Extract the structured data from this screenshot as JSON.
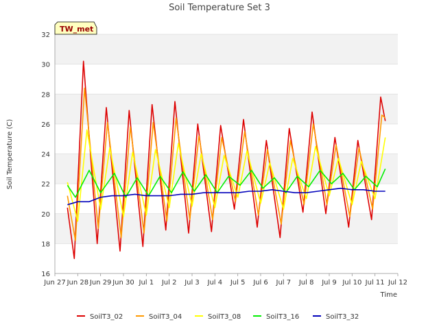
{
  "chart_data": {
    "type": "line",
    "title": "Soil Temperature Set 3",
    "xlabel": "Time",
    "ylabel": "Soil Temperature (C)",
    "site_label": "TW_met",
    "x_unit": "days",
    "xlim": [
      0,
      15
    ],
    "ylim": [
      16,
      32
    ],
    "yticks": [
      16,
      18,
      20,
      22,
      24,
      26,
      28,
      30,
      32
    ],
    "xticks": [
      {
        "x": 0,
        "label": "Jun 27"
      },
      {
        "x": 1,
        "label": "Jun 28"
      },
      {
        "x": 2,
        "label": "Jun 29"
      },
      {
        "x": 3,
        "label": "Jun 30"
      },
      {
        "x": 4,
        "label": "Jul 1"
      },
      {
        "x": 5,
        "label": "Jul 2"
      },
      {
        "x": 6,
        "label": "Jul 3"
      },
      {
        "x": 7,
        "label": "Jul 4"
      },
      {
        "x": 8,
        "label": "Jul 5"
      },
      {
        "x": 9,
        "label": "Jul 6"
      },
      {
        "x": 10,
        "label": "Jul 7"
      },
      {
        "x": 11,
        "label": "Jul 8"
      },
      {
        "x": 12,
        "label": "Jul 9"
      },
      {
        "x": 13,
        "label": "Jul 10"
      },
      {
        "x": 14,
        "label": "Jul 11"
      },
      {
        "x": 15,
        "label": "Jul 12"
      }
    ],
    "grid": true,
    "legend_position": "bottom",
    "series": [
      {
        "name": "SoilT3_02",
        "color": "#dd0000",
        "points": [
          [
            0.55,
            20.4
          ],
          [
            0.85,
            17.0
          ],
          [
            1.25,
            30.2
          ],
          [
            1.85,
            18.0
          ],
          [
            2.25,
            27.1
          ],
          [
            2.85,
            17.5
          ],
          [
            3.25,
            26.9
          ],
          [
            3.85,
            17.8
          ],
          [
            4.25,
            27.3
          ],
          [
            4.85,
            18.9
          ],
          [
            5.25,
            27.5
          ],
          [
            5.85,
            18.7
          ],
          [
            6.25,
            26.0
          ],
          [
            6.85,
            18.8
          ],
          [
            7.25,
            25.9
          ],
          [
            7.85,
            20.3
          ],
          [
            8.25,
            26.3
          ],
          [
            8.85,
            19.1
          ],
          [
            9.25,
            24.9
          ],
          [
            9.85,
            18.4
          ],
          [
            10.25,
            25.7
          ],
          [
            10.85,
            20.1
          ],
          [
            11.25,
            26.8
          ],
          [
            11.85,
            20.0
          ],
          [
            12.25,
            25.1
          ],
          [
            12.85,
            19.1
          ],
          [
            13.25,
            24.9
          ],
          [
            13.85,
            19.6
          ],
          [
            14.25,
            27.8
          ],
          [
            14.45,
            26.2
          ]
        ]
      },
      {
        "name": "SoilT3_04",
        "color": "#ff9900",
        "points": [
          [
            0.55,
            21.2
          ],
          [
            0.9,
            18.2
          ],
          [
            1.3,
            28.4
          ],
          [
            1.9,
            19.0
          ],
          [
            2.3,
            26.1
          ],
          [
            2.9,
            18.4
          ],
          [
            3.3,
            25.8
          ],
          [
            3.9,
            18.7
          ],
          [
            4.3,
            26.1
          ],
          [
            4.9,
            19.5
          ],
          [
            5.3,
            26.4
          ],
          [
            5.9,
            19.6
          ],
          [
            6.3,
            25.2
          ],
          [
            6.9,
            19.6
          ],
          [
            7.3,
            25.1
          ],
          [
            7.9,
            20.8
          ],
          [
            8.3,
            25.5
          ],
          [
            8.9,
            19.9
          ],
          [
            9.3,
            24.3
          ],
          [
            9.9,
            19.3
          ],
          [
            10.3,
            24.9
          ],
          [
            10.9,
            20.6
          ],
          [
            11.3,
            26.0
          ],
          [
            11.9,
            20.6
          ],
          [
            12.3,
            24.6
          ],
          [
            12.9,
            19.8
          ],
          [
            13.3,
            24.4
          ],
          [
            13.9,
            20.3
          ],
          [
            14.3,
            26.6
          ],
          [
            14.45,
            26.4
          ]
        ]
      },
      {
        "name": "SoilT3_08",
        "color": "#ffff00",
        "points": [
          [
            0.55,
            22.1
          ],
          [
            1.0,
            19.5
          ],
          [
            1.4,
            25.6
          ],
          [
            2.0,
            20.3
          ],
          [
            2.4,
            24.4
          ],
          [
            3.0,
            19.8
          ],
          [
            3.4,
            24.1
          ],
          [
            4.0,
            19.9
          ],
          [
            4.4,
            24.3
          ],
          [
            5.0,
            20.4
          ],
          [
            5.4,
            24.7
          ],
          [
            6.0,
            20.5
          ],
          [
            6.4,
            24.0
          ],
          [
            7.0,
            20.4
          ],
          [
            7.4,
            23.9
          ],
          [
            8.0,
            21.1
          ],
          [
            8.4,
            24.2
          ],
          [
            9.0,
            20.7
          ],
          [
            9.4,
            23.4
          ],
          [
            10.0,
            20.3
          ],
          [
            10.4,
            23.7
          ],
          [
            11.0,
            21.0
          ],
          [
            11.4,
            24.5
          ],
          [
            12.0,
            21.2
          ],
          [
            12.4,
            23.7
          ],
          [
            13.0,
            20.6
          ],
          [
            13.4,
            23.5
          ],
          [
            14.0,
            21.0
          ],
          [
            14.45,
            25.1
          ]
        ]
      },
      {
        "name": "SoilT3_16",
        "color": "#00ee00",
        "points": [
          [
            0.55,
            21.9
          ],
          [
            0.9,
            21.1
          ],
          [
            1.5,
            22.9
          ],
          [
            2.0,
            21.4
          ],
          [
            2.6,
            22.7
          ],
          [
            3.1,
            21.1
          ],
          [
            3.6,
            22.4
          ],
          [
            4.1,
            21.2
          ],
          [
            4.6,
            22.5
          ],
          [
            5.1,
            21.4
          ],
          [
            5.6,
            22.8
          ],
          [
            6.1,
            21.5
          ],
          [
            6.6,
            22.6
          ],
          [
            7.1,
            21.4
          ],
          [
            7.6,
            22.5
          ],
          [
            8.1,
            21.9
          ],
          [
            8.6,
            22.9
          ],
          [
            9.1,
            21.7
          ],
          [
            9.6,
            22.4
          ],
          [
            10.1,
            21.4
          ],
          [
            10.6,
            22.5
          ],
          [
            11.1,
            21.8
          ],
          [
            11.6,
            22.9
          ],
          [
            12.1,
            22.0
          ],
          [
            12.6,
            22.7
          ],
          [
            13.1,
            21.6
          ],
          [
            13.6,
            22.5
          ],
          [
            14.1,
            21.8
          ],
          [
            14.45,
            23.0
          ]
        ]
      },
      {
        "name": "SoilT3_32",
        "color": "#0000bb",
        "points": [
          [
            0.55,
            20.6
          ],
          [
            1.0,
            20.8
          ],
          [
            1.5,
            20.8
          ],
          [
            2.0,
            21.1
          ],
          [
            2.5,
            21.2
          ],
          [
            3.0,
            21.2
          ],
          [
            3.5,
            21.3
          ],
          [
            4.0,
            21.2
          ],
          [
            4.5,
            21.2
          ],
          [
            5.0,
            21.2
          ],
          [
            5.5,
            21.3
          ],
          [
            6.0,
            21.3
          ],
          [
            6.5,
            21.4
          ],
          [
            7.0,
            21.4
          ],
          [
            7.5,
            21.4
          ],
          [
            8.0,
            21.4
          ],
          [
            8.5,
            21.5
          ],
          [
            9.0,
            21.5
          ],
          [
            9.5,
            21.6
          ],
          [
            10.0,
            21.5
          ],
          [
            10.5,
            21.4
          ],
          [
            11.0,
            21.4
          ],
          [
            11.5,
            21.5
          ],
          [
            12.0,
            21.6
          ],
          [
            12.5,
            21.7
          ],
          [
            13.0,
            21.6
          ],
          [
            13.5,
            21.6
          ],
          [
            14.0,
            21.5
          ],
          [
            14.45,
            21.5
          ]
        ]
      }
    ]
  }
}
